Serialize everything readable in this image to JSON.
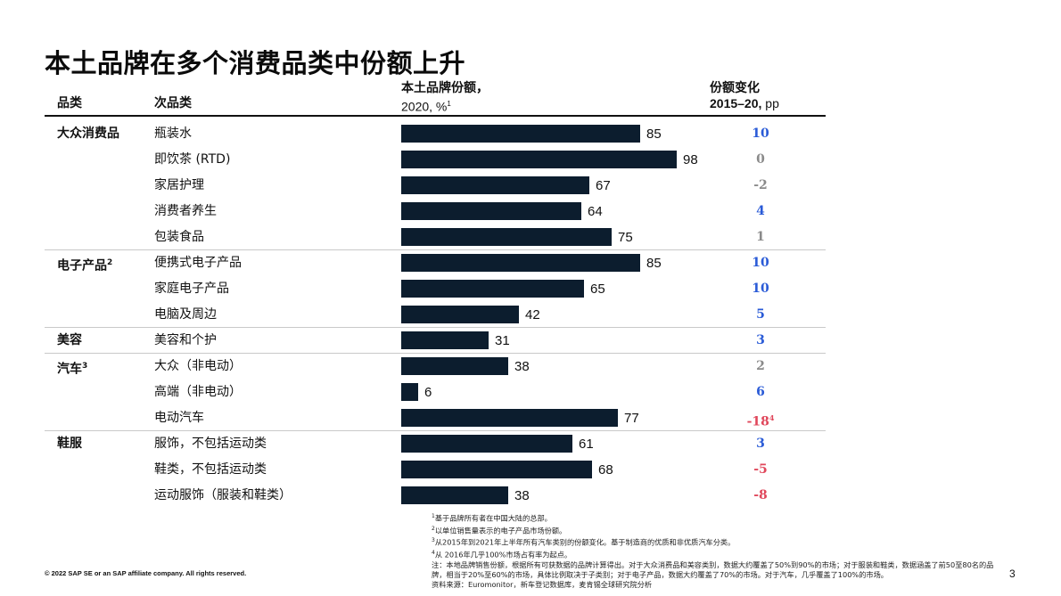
{
  "title": "本土品牌在多个消费品类中份额上升",
  "headers": {
    "category": "品类",
    "subcategory": "次品类",
    "share_line1": "本土品牌份额，",
    "share_line2": "2020, %",
    "share_sup": "1",
    "change_line1": "份额变化",
    "change_line2_bold": "2015–20,",
    "change_line2_unit": " pp"
  },
  "colors": {
    "bar": "#0c1d2e",
    "positive": "#2a5bd7",
    "neutral": "#8a8a8a",
    "negative": "#e0475b"
  },
  "chart_data": {
    "type": "bar",
    "orientation": "horizontal",
    "xlim": [
      0,
      100
    ],
    "rows": [
      {
        "category": "大众消费品",
        "category_sup": "",
        "sub": "瓶装水",
        "value": 85,
        "change": "10",
        "change_sup": "",
        "sign": "positive"
      },
      {
        "category": "",
        "category_sup": "",
        "sub": "即饮茶 (RTD)",
        "value": 98,
        "change": "0",
        "change_sup": "",
        "sign": "neutral"
      },
      {
        "category": "",
        "category_sup": "",
        "sub": "家居护理",
        "value": 67,
        "change": "-2",
        "change_sup": "",
        "sign": "neutral"
      },
      {
        "category": "",
        "category_sup": "",
        "sub": "消费者养生",
        "value": 64,
        "change": "4",
        "change_sup": "",
        "sign": "positive"
      },
      {
        "category": "",
        "category_sup": "",
        "sub": "包装食品",
        "value": 75,
        "change": "1",
        "change_sup": "",
        "sign": "neutral"
      },
      {
        "category": "电子产品",
        "category_sup": "2",
        "sub": "便携式电子产品",
        "value": 85,
        "change": "10",
        "change_sup": "",
        "sign": "positive"
      },
      {
        "category": "",
        "category_sup": "",
        "sub": "家庭电子产品",
        "value": 65,
        "change": "10",
        "change_sup": "",
        "sign": "positive"
      },
      {
        "category": "",
        "category_sup": "",
        "sub": "电脑及周边",
        "value": 42,
        "change": "5",
        "change_sup": "",
        "sign": "positive"
      },
      {
        "category": "美容",
        "category_sup": "",
        "sub": "美容和个护",
        "value": 31,
        "change": "3",
        "change_sup": "",
        "sign": "positive"
      },
      {
        "category": "汽车",
        "category_sup": "3",
        "sub": "大众（非电动）",
        "value": 38,
        "change": "2",
        "change_sup": "",
        "sign": "neutral"
      },
      {
        "category": "",
        "category_sup": "",
        "sub": "高端（非电动）",
        "value": 6,
        "change": "6",
        "change_sup": "",
        "sign": "positive"
      },
      {
        "category": "",
        "category_sup": "",
        "sub": "电动汽车",
        "value": 77,
        "change": "-18",
        "change_sup": "4",
        "sign": "negative"
      },
      {
        "category": "鞋服",
        "category_sup": "",
        "sub": "服饰，不包括运动类",
        "value": 61,
        "change": "3",
        "change_sup": "",
        "sign": "positive"
      },
      {
        "category": "",
        "category_sup": "",
        "sub": "鞋类，不包括运动类",
        "value": 68,
        "change": "-5",
        "change_sup": "",
        "sign": "negative"
      },
      {
        "category": "",
        "category_sup": "",
        "sub": "运动服饰（服装和鞋类）",
        "value": 38,
        "change": "-8",
        "change_sup": "",
        "sign": "negative"
      }
    ]
  },
  "footnotes": [
    {
      "sup": "1",
      "text": "基于品牌所有者在中国大陆的总部。"
    },
    {
      "sup": "2",
      "text": "以单位销售量表示的电子产品市场份额。"
    },
    {
      "sup": "3",
      "text": "从2015年到2021年上半年所有汽车类别的份额变化。基于制造商的优质和非优质汽车分类。"
    },
    {
      "sup": "4",
      "text": "从 2016年几乎100%市场占有率为起点。"
    },
    {
      "sup": "",
      "text": "注：本地品牌销售份额，根据所有可获数据的品牌计算得出。对于大众消费品和美容类别，数据大约覆盖了50%到90%的市场；对于服装和鞋类，数据涵盖了前50至80名的品牌，相当于20%至60%的市场，具体比例取决于子类别；对于电子产品，数据大约覆盖了70%的市场。对于汽车，几乎覆盖了100%的市场。"
    },
    {
      "sup": "",
      "text": "资料来源：Euromonitor，新车登记数据库，麦肯锡全球研究院分析"
    }
  ],
  "copyright": "© 2022 SAP SE or an SAP affiliate company. All rights reserved.",
  "page_number": "3"
}
